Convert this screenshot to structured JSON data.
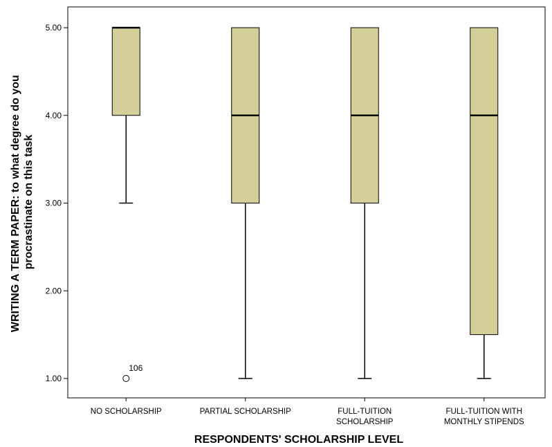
{
  "chart_data": {
    "type": "boxplot",
    "xlabel": "RESPONDENTS' SCHOLARSHIP LEVEL",
    "ylabel": [
      "WRITING A TERM PAPER: to what degree do you",
      "procrastinate on this task"
    ],
    "ylim": [
      0.6,
      5.25
    ],
    "yticks": [
      1.0,
      2.0,
      3.0,
      4.0,
      5.0
    ],
    "ytick_labels": [
      "1.00",
      "2.00",
      "3.00",
      "4.00",
      "5.00"
    ],
    "grid": false,
    "box_color": "#d4cf98",
    "categories": [
      {
        "label": [
          "NO SCHOLARSHIP"
        ],
        "whisker_low": 3.0,
        "q1": 4.0,
        "median": 5.0,
        "q3": 5.0,
        "whisker_high": 5.0,
        "outliers": [
          {
            "value": 1.0,
            "label": "106"
          }
        ]
      },
      {
        "label": [
          "PARTIAL SCHOLARSHIP"
        ],
        "whisker_low": 1.0,
        "q1": 3.0,
        "median": 4.0,
        "q3": 5.0,
        "whisker_high": 5.0,
        "outliers": []
      },
      {
        "label": [
          "FULL-TUITION",
          "SCHOLARSHIP"
        ],
        "whisker_low": 1.0,
        "q1": 3.0,
        "median": 4.0,
        "q3": 5.0,
        "whisker_high": 5.0,
        "outliers": []
      },
      {
        "label": [
          "FULL-TUITION WITH",
          "MONTHLY STIPENDS"
        ],
        "whisker_low": 1.0,
        "q1": 1.5,
        "median": 4.0,
        "q3": 5.0,
        "whisker_high": 5.0,
        "outliers": []
      }
    ]
  }
}
